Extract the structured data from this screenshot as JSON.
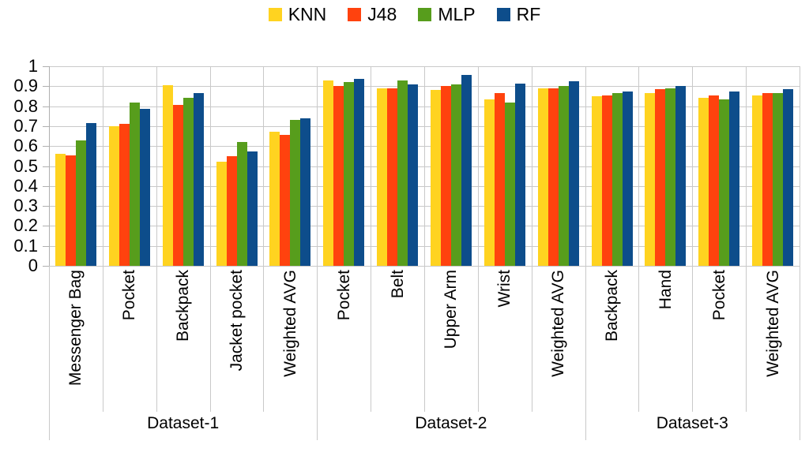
{
  "chart_data": {
    "type": "bar",
    "title": "",
    "xlabel": "",
    "ylabel": "",
    "ylim": [
      0,
      1
    ],
    "grid": true,
    "legend_position": "top-center",
    "yticks": [
      "1",
      "0.9",
      "0.8",
      "0.7",
      "0.6",
      "0.5",
      "0.4",
      "0.3",
      "0.2",
      "0.1",
      "0"
    ],
    "groups": [
      {
        "label": "Dataset-1",
        "categories": [
          "Messenger Bag",
          "Pocket",
          "Backpack",
          "Jacket pocket",
          "Weighted AVG"
        ]
      },
      {
        "label": "Dataset-2",
        "categories": [
          "Pocket",
          "Belt",
          "Upper Arm",
          "Wrist",
          "Weighted AVG"
        ]
      },
      {
        "label": "Dataset-3",
        "categories": [
          "Backpack",
          "Hand",
          "Pocket",
          "Weighted AVG"
        ]
      }
    ],
    "series": [
      {
        "name": "KNN",
        "color": "#FFD320",
        "values": [
          0.56,
          0.7,
          0.905,
          0.52,
          0.67,
          0.93,
          0.89,
          0.88,
          0.835,
          0.89,
          0.85,
          0.865,
          0.84,
          0.855
        ]
      },
      {
        "name": "J48",
        "color": "#FF420E",
        "values": [
          0.555,
          0.71,
          0.805,
          0.55,
          0.655,
          0.9,
          0.89,
          0.9,
          0.865,
          0.89,
          0.855,
          0.885,
          0.855,
          0.865
        ]
      },
      {
        "name": "MLP",
        "color": "#579D1C",
        "values": [
          0.63,
          0.82,
          0.84,
          0.62,
          0.73,
          0.92,
          0.93,
          0.91,
          0.82,
          0.9,
          0.865,
          0.89,
          0.835,
          0.865
        ]
      },
      {
        "name": "RF",
        "color": "#0D4D8B",
        "values": [
          0.715,
          0.785,
          0.865,
          0.575,
          0.74,
          0.935,
          0.91,
          0.955,
          0.915,
          0.925,
          0.875,
          0.9,
          0.875,
          0.885
        ]
      }
    ],
    "axis_colors": {
      "gridline": "#C9C9C9",
      "axis": "#B0B0B0",
      "text": "#000000"
    },
    "background": "#FFFFFF"
  }
}
